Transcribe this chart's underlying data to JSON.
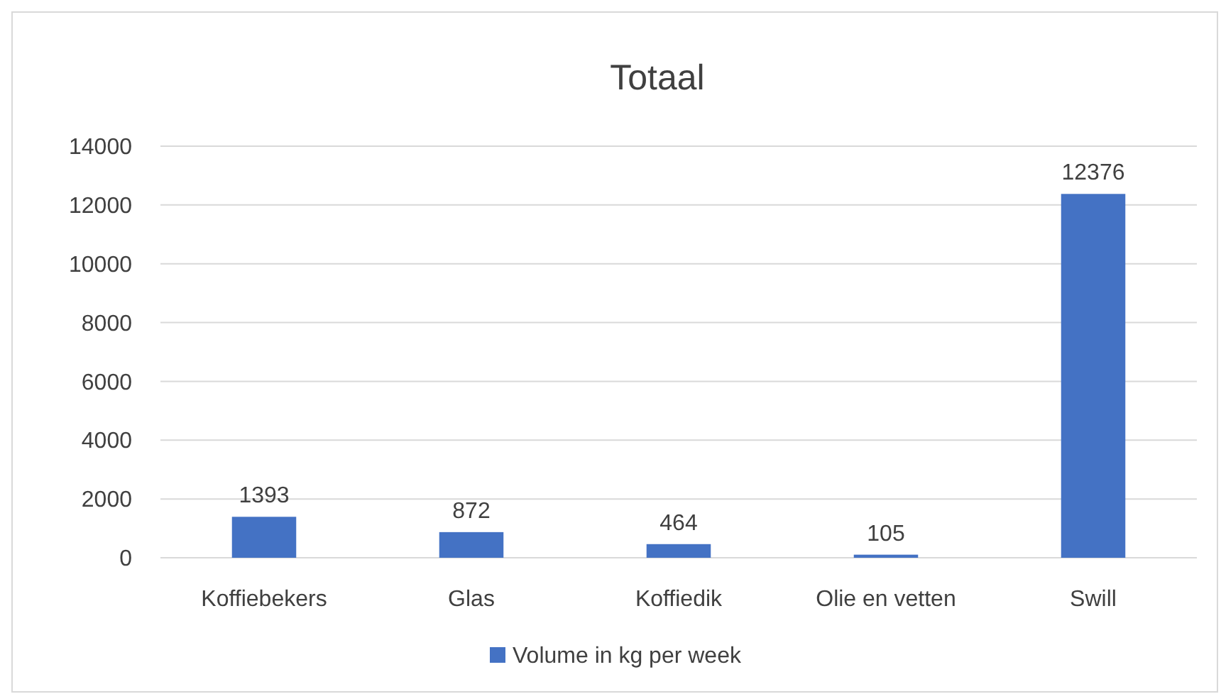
{
  "chart_data": {
    "type": "bar",
    "title": "Totaal",
    "categories": [
      "Koffiebekers",
      "Glas",
      "Koffiedik",
      "Olie en vetten",
      "Swill"
    ],
    "series": [
      {
        "name": "Volume in kg per week",
        "color": "#4472c4",
        "values": [
          1393,
          872,
          464,
          105,
          12376
        ]
      }
    ],
    "ylim": [
      0,
      14000
    ],
    "yticks": [
      0,
      2000,
      4000,
      6000,
      8000,
      10000,
      12000,
      14000
    ],
    "grid": "y",
    "legend": "bottom",
    "data_labels": true
  }
}
